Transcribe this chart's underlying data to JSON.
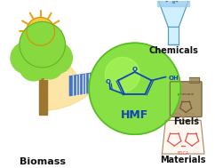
{
  "bg_color": "#ffffff",
  "sun_color": "#F5C840",
  "sun_ray_color": "#F0A020",
  "sun_beam_color": "#FAD060",
  "tree_trunk_color": "#9B7730",
  "tree_canopy_color": "#88D840",
  "tree_canopy_edge": "#55AA20",
  "bridge_color": "#4472C4",
  "bridge_stripe": "#ffffff",
  "sphere_color": "#88E044",
  "sphere_edge": "#55BB22",
  "sphere_highlight": "#BBFF66",
  "hmf_color": "#1144BB",
  "hmf_label": "HMF",
  "flask_body_color": "#C8EEFF",
  "flask_edge_color": "#5599BB",
  "flask_liquid_color": "#99CCEE",
  "chemicals_label": "Chemicals",
  "fuels_label": "Fuels",
  "materials_label": "Materials",
  "biomass_label": "Biomass",
  "label_fontsize": 7,
  "label_color": "#111111",
  "can_color": "#AA9966",
  "can_edge": "#776644",
  "bag_color": "#FFF8F0",
  "bag_edge": "#AA8866",
  "mol_color": "#DD5555"
}
